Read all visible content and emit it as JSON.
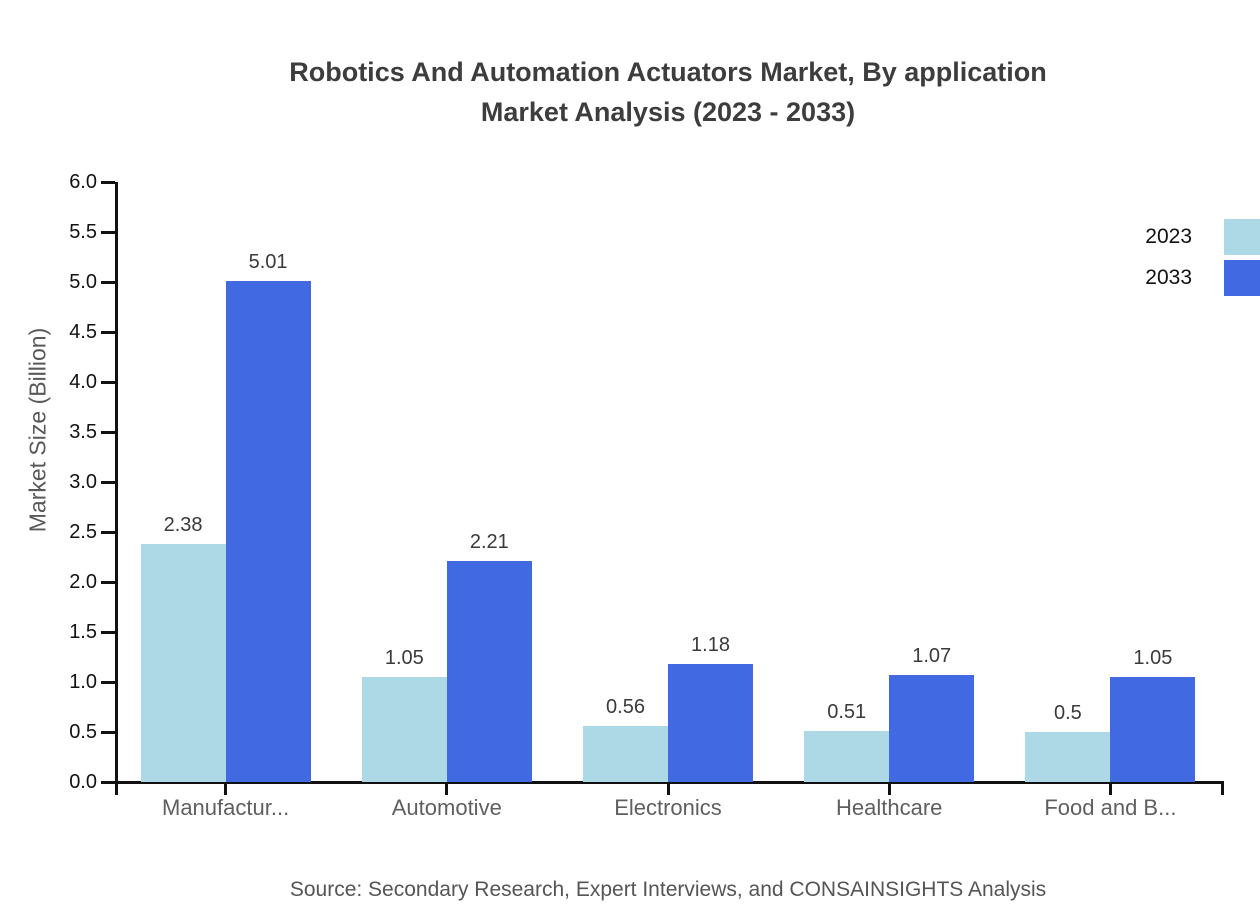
{
  "title": {
    "line1": "Robotics And Automation Actuators Market, By application",
    "line2": "Market Analysis (2023 - 2033)"
  },
  "source_note": "Source: Secondary Research, Expert Interviews, and CONSAINSIGHTS Analysis",
  "chart_data": {
    "type": "bar",
    "title": "Robotics And Automation Actuators Market, By application Market Analysis (2023 - 2033)",
    "categories": [
      "Manufactur...",
      "Automotive",
      "Electronics",
      "Healthcare",
      "Food and B..."
    ],
    "series": [
      {
        "name": "2023",
        "color": "#ADD8E6",
        "values": [
          2.38,
          1.05,
          0.56,
          0.51,
          0.5
        ]
      },
      {
        "name": "2033",
        "color": "#4169E1",
        "values": [
          5.01,
          2.21,
          1.18,
          1.07,
          1.05
        ]
      }
    ],
    "xlabel": "",
    "ylabel": "Market Size (Billion)",
    "ylim": [
      0,
      6
    ],
    "ytick_step": 0.5,
    "grid": false,
    "legend_position": "top-right",
    "value_labels": true,
    "axis_color": "#111111",
    "value_label_color": "#3a3a3a",
    "category_label_color": "#5f5f5f"
  }
}
